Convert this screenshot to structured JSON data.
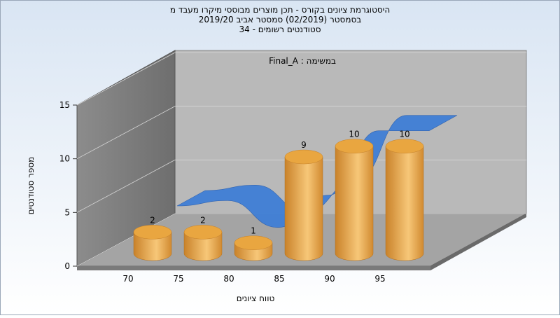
{
  "chart_data": {
    "type": "bar3d",
    "title": [
      "היסטוגרמת ציונים בקורס - תכן מוצרים מבוססי מיקרו מעבד מ",
      "בסמסטר  (02/2019)  סמסטר אביב 2019/20",
      "סטודנטים רשומים - 34"
    ],
    "annotation": "במשימה : Final_A",
    "x_label": "טווח ציונים",
    "y_label": "מספר סטודנטים",
    "categories": [
      "70",
      "75",
      "80",
      "85",
      "90",
      "95"
    ],
    "series": [
      {
        "type": "bar",
        "color": "#e8a445",
        "values": [
          2,
          2,
          1,
          9,
          10,
          10
        ]
      },
      {
        "type": "line",
        "color": "#3f7fd6",
        "values": [
          3,
          3.5,
          1,
          4,
          10,
          10
        ]
      }
    ],
    "ylim": [
      0,
      15
    ],
    "yticks": [
      0,
      5,
      10,
      15
    ],
    "grid": true
  }
}
